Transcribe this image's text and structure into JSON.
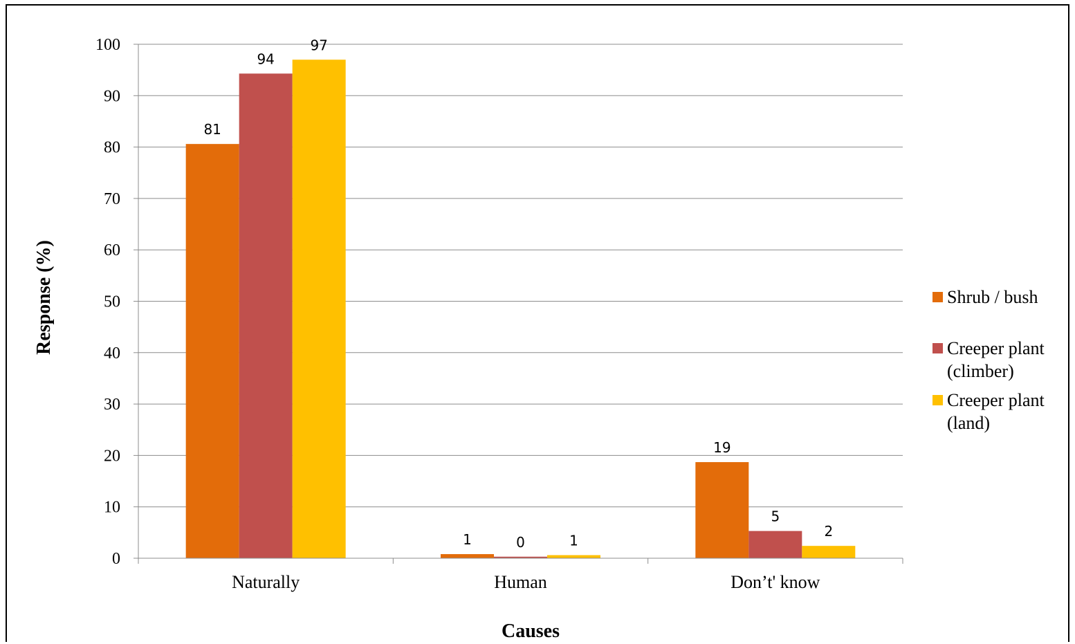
{
  "chart_data": {
    "type": "bar",
    "categories": [
      "Naturally",
      "Human",
      "Don’t' know"
    ],
    "series": [
      {
        "name": "Shrub / bush",
        "values": [
          80.6,
          0.8,
          18.7
        ],
        "labels": [
          "81",
          "1",
          "19"
        ],
        "color": "#E36C0A"
      },
      {
        "name": "Creeper plant (climber)",
        "name_lines": [
          "Creeper plant",
          "(climber)"
        ],
        "values": [
          94.3,
          0.3,
          5.3
        ],
        "labels": [
          "94",
          "0",
          "5"
        ],
        "color": "#C0504D"
      },
      {
        "name": "Creeper plant (land)",
        "name_lines": [
          "Creeper plant",
          "(land)"
        ],
        "values": [
          97.0,
          0.6,
          2.4
        ],
        "labels": [
          "97",
          "1",
          "2"
        ],
        "color": "#FFC000"
      }
    ],
    "xlabel": "Causes",
    "ylabel": "Response (%)",
    "ylim": [
      0,
      100
    ],
    "yticks": [
      "0",
      "10",
      "20",
      "30",
      "40",
      "50",
      "60",
      "70",
      "80",
      "90",
      "100"
    ],
    "grid": true,
    "legend": "right"
  }
}
